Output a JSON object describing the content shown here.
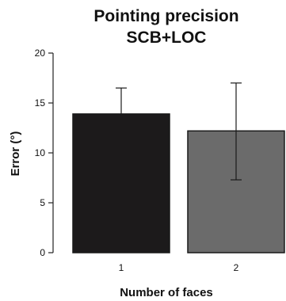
{
  "chart_data": {
    "type": "bar",
    "title": [
      "Pointing precision",
      "SCB+LOC"
    ],
    "xlabel": "Number of faces",
    "ylabel": "Error (°)",
    "categories": [
      "1",
      "2"
    ],
    "values": [
      13.9,
      12.2
    ],
    "error_low": [
      13.9,
      7.3
    ],
    "error_high": [
      16.5,
      17.0
    ],
    "ylim": [
      0,
      20
    ],
    "yticks": [
      0,
      5,
      10,
      15,
      20
    ],
    "bar_colors": [
      "#1c1a1b",
      "#6b6b6b"
    ],
    "grid": false,
    "legend": "none"
  }
}
